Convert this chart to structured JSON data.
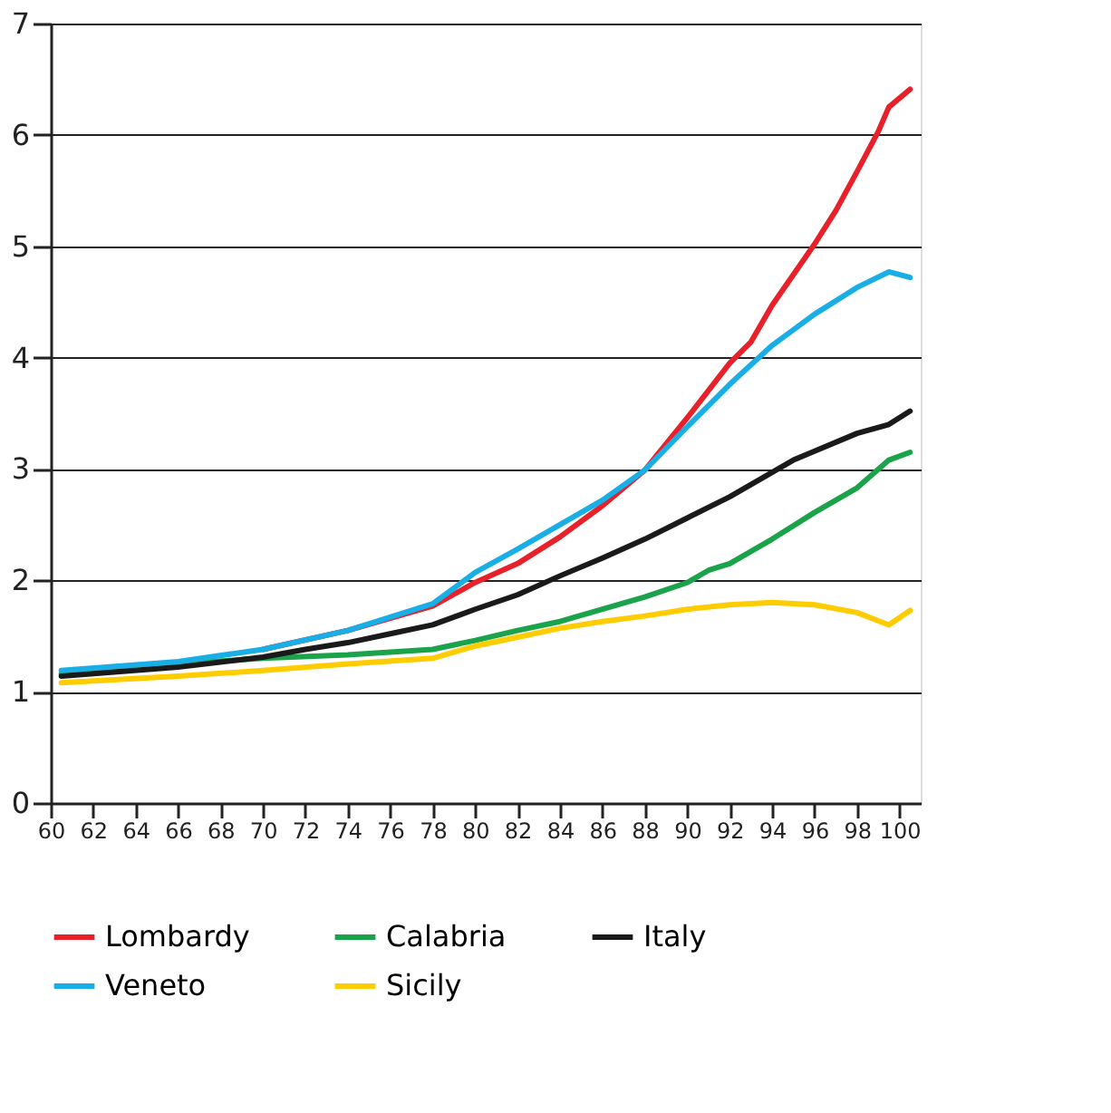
{
  "chart_data": {
    "type": "line",
    "xlim": [
      60,
      101
    ],
    "xticks": [
      60,
      62,
      64,
      66,
      68,
      70,
      72,
      74,
      76,
      78,
      80,
      82,
      84,
      86,
      88,
      90,
      92,
      94,
      96,
      98,
      100
    ],
    "ylim": [
      0,
      7
    ],
    "yticks": [
      0,
      1,
      2,
      3,
      4,
      5,
      6,
      7
    ],
    "grid": "y",
    "legend": "bottom",
    "line_style": "solid",
    "series": [
      {
        "name": "Lombardy",
        "color": "#e8202a",
        "x": [
          70,
          74,
          78,
          80,
          82,
          84,
          86,
          88,
          90,
          92,
          93,
          94,
          96,
          97,
          98,
          99,
          99.5,
          100.5
        ],
        "values": [
          1.38,
          1.55,
          1.77,
          1.98,
          2.15,
          2.39,
          2.67,
          2.99,
          3.46,
          3.95,
          4.14,
          4.47,
          5.02,
          5.32,
          5.67,
          6.03,
          6.25,
          6.41
        ]
      },
      {
        "name": "Calabria",
        "color": "#1aa34a",
        "x": [
          60.5,
          66,
          70,
          74,
          78,
          80,
          82,
          84,
          86,
          88,
          90,
          91,
          92,
          94,
          96,
          98,
          99.5,
          100.5
        ],
        "values": [
          1.16,
          1.25,
          1.3,
          1.33,
          1.38,
          1.46,
          1.55,
          1.63,
          1.74,
          1.85,
          1.98,
          2.09,
          2.15,
          2.37,
          2.61,
          2.83,
          3.08,
          3.15
        ]
      },
      {
        "name": "Italy",
        "color": "#1a1a1a",
        "x": [
          60.5,
          66,
          70,
          72,
          74,
          76,
          78,
          80,
          82,
          84,
          86,
          88,
          90,
          92,
          94,
          95,
          96,
          98,
          99.5,
          100.5
        ],
        "values": [
          1.14,
          1.22,
          1.31,
          1.38,
          1.44,
          1.52,
          1.6,
          1.74,
          1.87,
          2.04,
          2.2,
          2.37,
          2.56,
          2.75,
          2.97,
          3.08,
          3.16,
          3.32,
          3.4,
          3.52
        ]
      },
      {
        "name": "Veneto",
        "color": "#19aee6",
        "x": [
          60.5,
          66,
          70,
          74,
          78,
          80,
          82,
          84,
          86,
          88,
          90,
          92,
          94,
          96,
          98,
          99.5,
          100.5
        ],
        "values": [
          1.19,
          1.27,
          1.38,
          1.55,
          1.79,
          2.07,
          2.28,
          2.5,
          2.72,
          2.99,
          3.38,
          3.76,
          4.11,
          4.39,
          4.63,
          4.77,
          4.72
        ]
      },
      {
        "name": "Sicily",
        "color": "#ffcc00",
        "x": [
          60.5,
          66,
          70,
          74,
          78,
          80,
          82,
          84,
          86,
          88,
          90,
          92,
          94,
          96,
          98,
          99.5,
          100.5
        ],
        "values": [
          1.08,
          1.14,
          1.19,
          1.25,
          1.3,
          1.41,
          1.49,
          1.57,
          1.63,
          1.68,
          1.74,
          1.78,
          1.8,
          1.78,
          1.71,
          1.6,
          1.73
        ]
      }
    ]
  }
}
